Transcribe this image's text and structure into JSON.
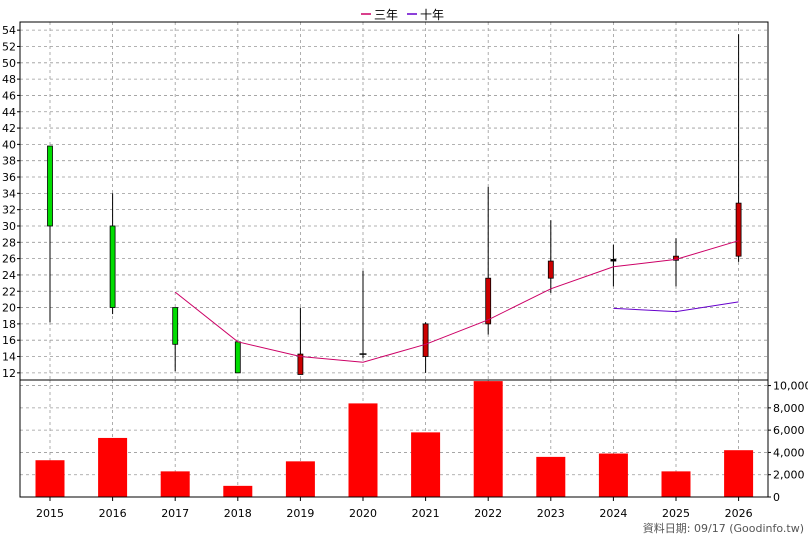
{
  "chart_data": {
    "type": "candlestick+line+bar",
    "categories": [
      "2015",
      "2016",
      "2017",
      "2018",
      "2019",
      "2020",
      "2021",
      "2022",
      "2023",
      "2024",
      "2025",
      "2026"
    ],
    "price_axis": {
      "ticks": [
        12,
        14,
        16,
        18,
        20,
        22,
        24,
        26,
        28,
        30,
        32,
        34,
        36,
        38,
        40,
        42,
        44,
        46,
        48,
        50,
        52,
        54
      ],
      "range": [
        11,
        55
      ]
    },
    "volume_axis": {
      "ticks": [
        0,
        2000,
        4000,
        6000,
        8000,
        10000
      ],
      "tick_labels": [
        "0",
        "2,000",
        "4,000",
        "6,000",
        "8,000",
        "10,000"
      ],
      "range": [
        0,
        10500
      ]
    },
    "candles": [
      {
        "x": "2015",
        "open": 39.8,
        "close": 30.0,
        "high": 39.8,
        "low": 18.2,
        "color": "#00dd00"
      },
      {
        "x": "2016",
        "open": 30.0,
        "close": 20.0,
        "high": 34.0,
        "low": 19.2,
        "color": "#00dd00"
      },
      {
        "x": "2017",
        "open": 20.0,
        "close": 15.5,
        "high": 20.0,
        "low": 12.2,
        "color": "#00dd00"
      },
      {
        "x": "2018",
        "open": 15.8,
        "close": 12.0,
        "high": 15.8,
        "low": 12.0,
        "color": "#00dd00"
      },
      {
        "x": "2019",
        "open": 11.8,
        "close": 14.3,
        "high": 20.0,
        "low": 11.8,
        "color": "#cc0000"
      },
      {
        "x": "2020",
        "open": 14.2,
        "close": 14.3,
        "high": 24.5,
        "low": 13.8,
        "color": "#000000"
      },
      {
        "x": "2021",
        "open": 14.0,
        "close": 18.0,
        "high": 18.2,
        "low": 12.0,
        "color": "#cc0000"
      },
      {
        "x": "2022",
        "open": 18.0,
        "close": 23.6,
        "high": 34.8,
        "low": 16.7,
        "color": "#cc0000"
      },
      {
        "x": "2023",
        "open": 23.6,
        "close": 25.7,
        "high": 30.7,
        "low": 21.8,
        "color": "#cc0000"
      },
      {
        "x": "2024",
        "open": 25.7,
        "close": 25.9,
        "high": 27.7,
        "low": 22.6,
        "color": "#000000"
      },
      {
        "x": "2025",
        "open": 25.8,
        "close": 26.3,
        "high": 28.5,
        "low": 22.6,
        "color": "#cc0000"
      },
      {
        "x": "2026",
        "open": 26.3,
        "close": 32.8,
        "high": 53.5,
        "low": 25.6,
        "color": "#cc0000"
      }
    ],
    "series": [
      {
        "name": "三年",
        "color": "#cc0066",
        "x": [
          "2017",
          "2018",
          "2019",
          "2020",
          "2021",
          "2022",
          "2023",
          "2024",
          "2025",
          "2026"
        ],
        "values": [
          21.9,
          15.8,
          14.0,
          13.3,
          15.5,
          18.5,
          22.3,
          25.0,
          25.9,
          28.2
        ]
      },
      {
        "name": "十年",
        "color": "#6600cc",
        "x": [
          "2024",
          "2025",
          "2026"
        ],
        "values": [
          19.9,
          19.5,
          20.7
        ]
      }
    ],
    "volume": {
      "color": "#ff0000",
      "values": [
        3300,
        5300,
        2300,
        1000,
        3200,
        8400,
        5800,
        10400,
        3600,
        3900,
        2300,
        4200
      ]
    },
    "grid": true,
    "legend": "top-center",
    "footnote": "資料日期: 09/17  (Goodinfo.tw)"
  }
}
